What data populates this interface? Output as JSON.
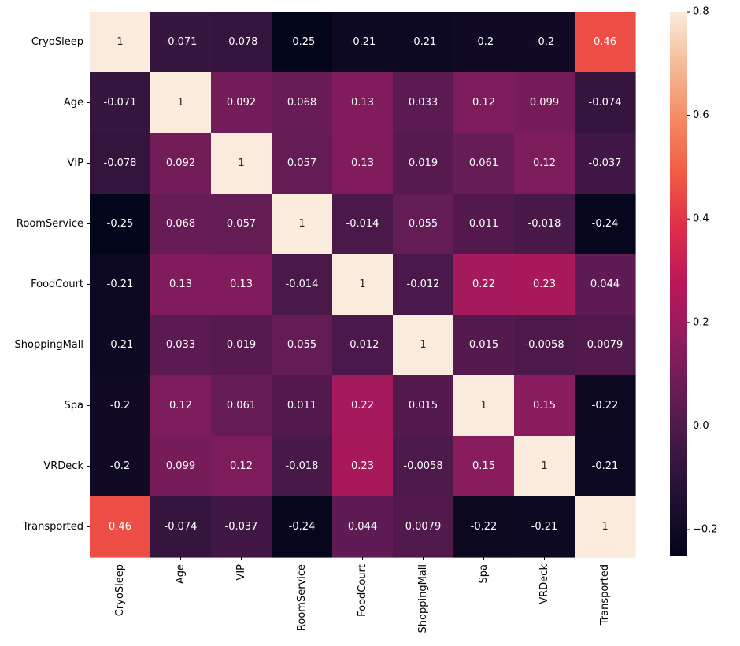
{
  "chart_data": {
    "type": "heatmap",
    "title": "",
    "xlabel": "",
    "ylabel": "",
    "variables": [
      "CryoSleep",
      "Age",
      "VIP",
      "RoomService",
      "FoodCourt",
      "ShoppingMall",
      "Spa",
      "VRDeck",
      "Transported"
    ],
    "matrix": [
      [
        1,
        -0.071,
        -0.078,
        -0.25,
        -0.21,
        -0.21,
        -0.2,
        -0.2,
        0.46
      ],
      [
        -0.071,
        1,
        0.092,
        0.068,
        0.13,
        0.033,
        0.12,
        0.099,
        -0.074
      ],
      [
        -0.078,
        0.092,
        1,
        0.057,
        0.13,
        0.019,
        0.061,
        0.12,
        -0.037
      ],
      [
        -0.25,
        0.068,
        0.057,
        1,
        -0.014,
        0.055,
        0.011,
        -0.018,
        -0.24
      ],
      [
        -0.21,
        0.13,
        0.13,
        -0.014,
        1,
        -0.012,
        0.22,
        0.23,
        0.044
      ],
      [
        -0.21,
        0.033,
        0.019,
        0.055,
        -0.012,
        1,
        0.015,
        -0.0058,
        0.0079
      ],
      [
        -0.2,
        0.12,
        0.061,
        0.011,
        0.22,
        0.015,
        1,
        0.15,
        -0.22
      ],
      [
        -0.2,
        0.099,
        0.12,
        -0.018,
        0.23,
        -0.0058,
        0.15,
        1,
        -0.21
      ],
      [
        0.46,
        -0.074,
        -0.037,
        -0.24,
        0.044,
        0.0079,
        -0.22,
        -0.21,
        1
      ]
    ],
    "colormap": "rocket",
    "color_range": [
      -0.25,
      0.8
    ],
    "colorbar_ticks": [
      -0.2,
      0.0,
      0.2,
      0.4,
      0.6,
      0.8
    ],
    "colorbar_tick_labels": [
      "−0.2",
      "0.0",
      "0.2",
      "0.4",
      "0.6",
      "0.8"
    ],
    "annotations": true,
    "grid": false,
    "legend": "colorbar-right"
  }
}
